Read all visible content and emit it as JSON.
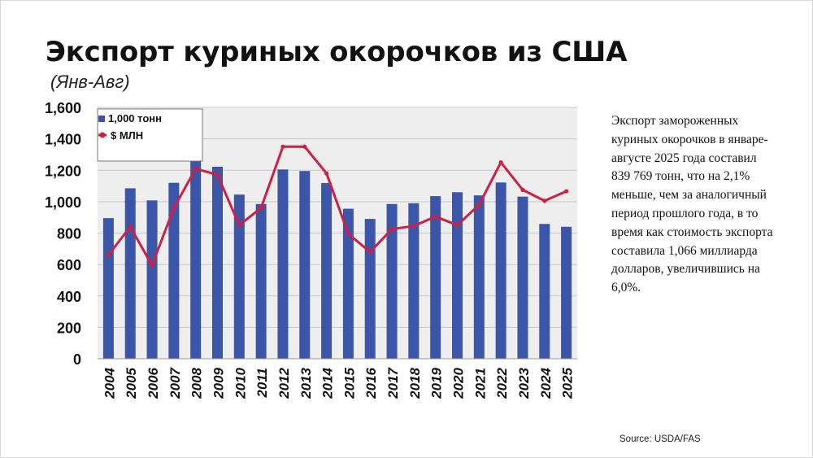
{
  "title": "Экспорт куриных окорочков из США",
  "subtitle": "(Янв-Авг)",
  "description": "Экспорт замороженных куриных окорочков в январе-августе 2025 года составил 839 769 тонн, что на 2,1% меньше, чем за аналогичный период прошлого года, в то время как стоимость экспорта составила 1,066 миллиарда долларов, увеличившись на 6,0%.",
  "source": "Source: USDA/FAS",
  "colors": {
    "bar": "#3b55a8",
    "line": "#cf1f45",
    "grid": "#c8c8c8",
    "plot_bg": "#eeeeee"
  },
  "chart_data": {
    "type": "bar",
    "categories": [
      "2004",
      "2005",
      "2006",
      "2007",
      "2008",
      "2009",
      "2010",
      "2011",
      "2012",
      "2013",
      "2014",
      "2015",
      "2016",
      "2017",
      "2018",
      "2019",
      "2020",
      "2021",
      "2022",
      "2023",
      "2024",
      "2025"
    ],
    "series": [
      {
        "name": "1,000 тонн",
        "type": "bar",
        "values": [
          895,
          1085,
          1008,
          1120,
          1275,
          1222,
          1045,
          985,
          1205,
          1195,
          1118,
          955,
          890,
          985,
          990,
          1035,
          1060,
          1040,
          1122,
          1032,
          858,
          840
        ]
      },
      {
        "name": "$ МЛН",
        "type": "line",
        "values": [
          660,
          840,
          595,
          960,
          1210,
          1170,
          850,
          960,
          1350,
          1350,
          1180,
          795,
          680,
          825,
          845,
          905,
          850,
          980,
          1250,
          1075,
          1005,
          1066
        ]
      }
    ],
    "y_ticks": [
      "0",
      "200",
      "400",
      "600",
      "800",
      "1,000",
      "1,200",
      "1,400",
      "1,600"
    ],
    "ylim": [
      0,
      1600
    ],
    "grid": true,
    "legend_position": "top-left"
  }
}
